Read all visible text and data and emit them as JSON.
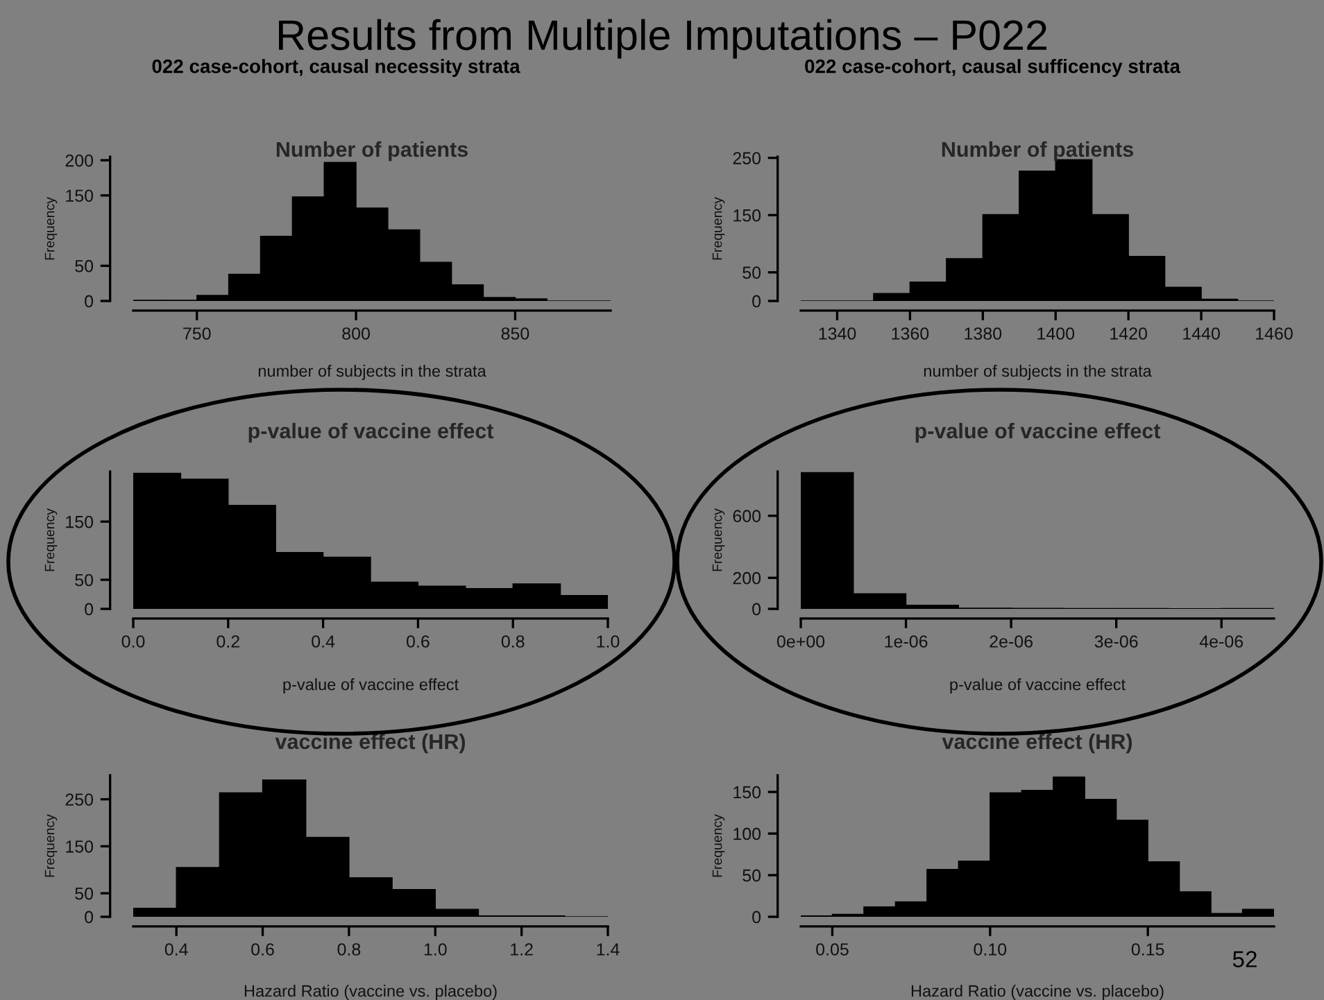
{
  "chart_data": [
    {
      "type": "histogram",
      "title": "Number of patients",
      "xlabel": "number of subjects in the strata",
      "ylabel": "Frequency",
      "color": "#000000",
      "annotations": [
        "Results from Multiple Imputations – P022",
        "022 case-cohort, causal necessity strata"
      ],
      "bins": [
        730,
        740,
        750,
        760,
        770,
        780,
        790,
        800,
        810,
        820,
        830,
        840,
        850,
        860,
        870,
        880
      ],
      "values": [
        1,
        1,
        8,
        38,
        92,
        148,
        197,
        132,
        101,
        55,
        23,
        5,
        3,
        0,
        0
      ],
      "xlim": [
        730,
        880
      ],
      "ylim": [
        0,
        205
      ],
      "xticks": [
        750,
        800,
        850
      ],
      "yticks": [
        0,
        50,
        150,
        200
      ],
      "grid": false,
      "legend": false
    },
    {
      "type": "histogram",
      "title": "Number of patients",
      "xlabel": "number of subjects in the strata",
      "ylabel": "Frequency",
      "color": "#000000",
      "annotations": [
        "022 case-cohort, causal sufficency strata"
      ],
      "bins": [
        1330,
        1340,
        1350,
        1360,
        1370,
        1380,
        1390,
        1400,
        1410,
        1420,
        1430,
        1440,
        1450,
        1460
      ],
      "values": [
        0,
        0,
        13,
        33,
        74,
        151,
        227,
        247,
        151,
        78,
        24,
        3,
        0
      ],
      "xlim": [
        1330,
        1460
      ],
      "ylim": [
        0,
        252
      ],
      "xticks": [
        1340,
        1360,
        1380,
        1400,
        1420,
        1440,
        1460
      ],
      "yticks": [
        0,
        50,
        150,
        250
      ],
      "grid": false,
      "legend": false
    },
    {
      "type": "histogram",
      "title": "p-value of vaccine effect",
      "xlabel": "p-value of vaccine effect",
      "ylabel": "Frequency",
      "color": "#000000",
      "bins": [
        0.0,
        0.1,
        0.2,
        0.3,
        0.4,
        0.5,
        0.6,
        0.7,
        0.8,
        0.9,
        1.0
      ],
      "values": [
        233,
        223,
        178,
        97,
        89,
        46,
        39,
        35,
        43,
        23
      ],
      "xlim": [
        0,
        1
      ],
      "ylim": [
        0,
        236
      ],
      "xticks": [
        {
          "value": 0,
          "label": "0.0"
        },
        {
          "value": 0.2,
          "label": "0.2"
        },
        {
          "value": 0.4,
          "label": "0.4"
        },
        {
          "value": 0.6,
          "label": "0.6"
        },
        {
          "value": 0.8,
          "label": "0.8"
        },
        {
          "value": 1,
          "label": "1.0"
        }
      ],
      "yticks": [
        0,
        50,
        150
      ],
      "grid": false,
      "legend": false
    },
    {
      "type": "histogram",
      "title": "p-value of vaccine effect",
      "xlabel": "p-value of vaccine effect",
      "ylabel": "Frequency",
      "color": "#000000",
      "bins": [
        0,
        5e-07,
        1e-06,
        1.5e-06,
        2e-06,
        2.5e-06,
        3e-06,
        3.5e-06,
        4e-06,
        4.5e-06
      ],
      "values": [
        879,
        98,
        24,
        5,
        4,
        3,
        3,
        1,
        3
      ],
      "xlim": [
        0,
        4.5e-06
      ],
      "ylim": [
        0,
        885
      ],
      "xticks": [
        {
          "value": 0,
          "label": "0e+00"
        },
        {
          "value": 1e-06,
          "label": "1e-06"
        },
        {
          "value": 2e-06,
          "label": "2e-06"
        },
        {
          "value": 3e-06,
          "label": "3e-06"
        },
        {
          "value": 4e-06,
          "label": "4e-06"
        }
      ],
      "yticks": [
        0,
        200,
        600
      ],
      "grid": false,
      "legend": false
    },
    {
      "type": "histogram",
      "title": "vaccine effect (HR)",
      "xlabel": "Hazard Ratio (vaccine vs. placebo)",
      "ylabel": "Frequency",
      "color": "#000000",
      "bins": [
        0.3,
        0.4,
        0.5,
        0.6,
        0.7,
        0.8,
        0.9,
        1.0,
        1.1,
        1.2,
        1.3,
        1.4
      ],
      "values": [
        18,
        105,
        264,
        291,
        169,
        83,
        58,
        16,
        2,
        2,
        0
      ],
      "xlim": [
        0.3,
        1.4
      ],
      "ylim": [
        0,
        301
      ],
      "xticks": [
        0.4,
        0.6,
        0.8,
        {
          "value": 1.0,
          "label": "1.0"
        },
        1.2,
        1.4
      ],
      "yticks": [
        0,
        50,
        150,
        250
      ],
      "grid": false,
      "legend": false
    },
    {
      "type": "histogram",
      "title": "vaccine effect (HR)",
      "xlabel": "Hazard Ratio (vaccine vs. placebo)",
      "ylabel": "Frequency",
      "color": "#000000",
      "annotations": [
        "52"
      ],
      "bins": [
        0.04,
        0.05,
        0.06,
        0.07,
        0.08,
        0.09,
        0.1,
        0.11,
        0.12,
        0.13,
        0.14,
        0.15,
        0.16,
        0.17,
        0.18,
        0.19
      ],
      "values": [
        1,
        3,
        12,
        18,
        57,
        67,
        149,
        152,
        168,
        141,
        116,
        66,
        30,
        4,
        9
      ],
      "xlim": [
        0.04,
        0.19
      ],
      "ylim": [
        0,
        170
      ],
      "xticks": [
        0.05,
        {
          "value": 0.1,
          "label": "0.10"
        },
        0.15
      ],
      "yticks": [
        0,
        50,
        100,
        150
      ],
      "grid": false,
      "legend": false
    }
  ]
}
